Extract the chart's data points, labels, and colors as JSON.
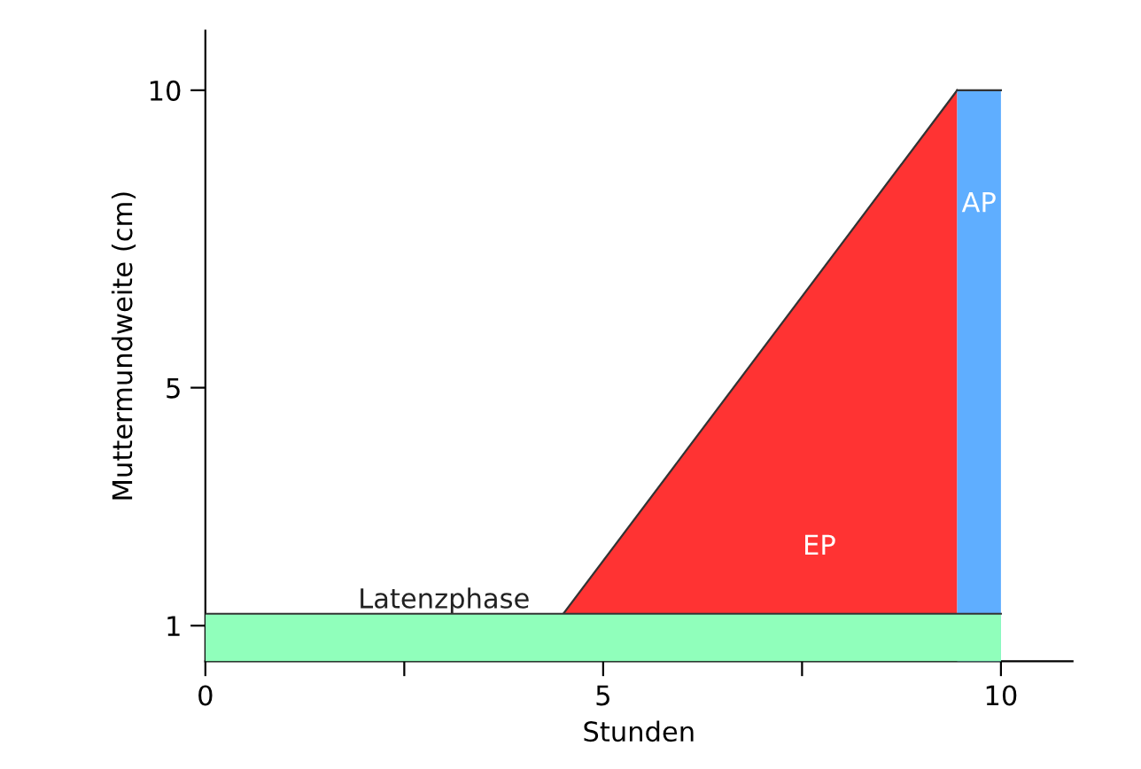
{
  "chart_data": {
    "type": "area",
    "xlabel": "Stunden",
    "ylabel": "Muttermundweite (cm)",
    "xlim": [
      0,
      10.9
    ],
    "ylim": [
      0.4,
      11
    ],
    "xticks": [
      0,
      {
        "value": 2.5,
        "label": null
      },
      5,
      {
        "value": 7.5,
        "label": null
      },
      10
    ],
    "yticks": [
      1,
      5,
      10
    ],
    "grid": false,
    "legend": false,
    "series": [
      {
        "name": "EP",
        "color": "#ff3333",
        "x": [
          4.5,
          9.45
        ],
        "values": [
          1.2,
          10
        ]
      },
      {
        "name": "AP",
        "color": "#5faeff",
        "x": [
          9.45,
          10
        ],
        "values": [
          10,
          10
        ]
      },
      {
        "name": "Latenzphase",
        "color": "#90ffbb",
        "x": [
          0,
          10
        ],
        "values": [
          1.2,
          1.2
        ]
      }
    ]
  }
}
